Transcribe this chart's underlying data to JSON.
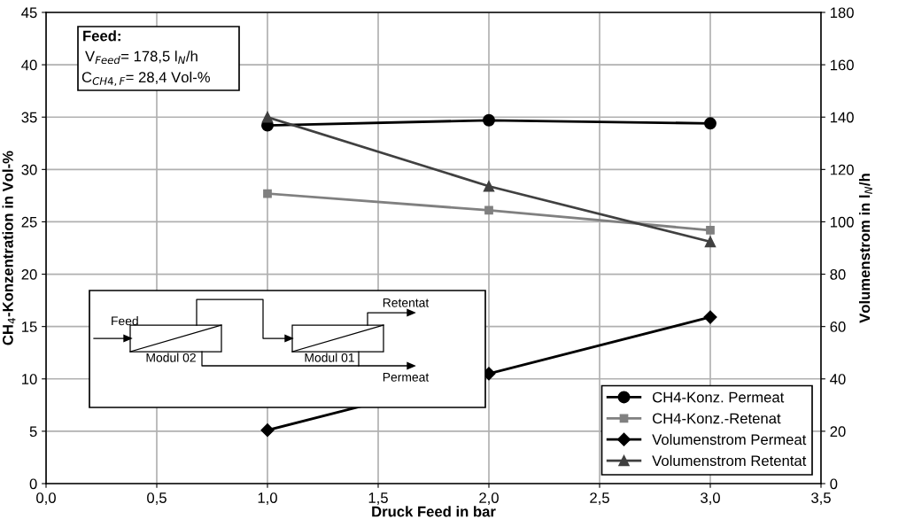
{
  "chart_data": {
    "type": "line",
    "xlabel": "Druck Feed in bar",
    "ylabel": "CH$_{4}$-Konzentration in Vol-%",
    "y2label": "Volumenstrom in l$_{N}$/h",
    "x": [
      1.0,
      2.0,
      3.0
    ],
    "series": [
      {
        "name": "CH4-Konz. Permeat",
        "color": "#000000",
        "marker": "circle",
        "values": [
          34.2,
          34.7,
          34.4
        ]
      },
      {
        "name": "CH4-Konz.-Retenat",
        "color": "#808080",
        "marker": "square",
        "values": [
          27.7,
          26.1,
          24.2
        ]
      },
      {
        "name": "Volumenstrom Permeat",
        "color": "#000000",
        "marker": "diamond",
        "axis": "y2",
        "values": [
          20.4,
          42.0,
          63.6
        ]
      },
      {
        "name": "Volumenstrom Retentat",
        "color": "#404040",
        "marker": "triangle",
        "axis": "y2",
        "values": [
          140.0,
          113.6,
          92.4
        ]
      }
    ],
    "xlim": [
      0,
      3.5
    ],
    "xticks": [
      {
        "value": 0,
        "label": "0,0"
      },
      {
        "value": 0.5,
        "label": "0,5"
      },
      {
        "value": 1.0,
        "label": "1,0"
      },
      {
        "value": 1.5,
        "label": "1,5"
      },
      {
        "value": 2.0,
        "label": "2,0"
      },
      {
        "value": 2.5,
        "label": "2,5"
      },
      {
        "value": 3.0,
        "label": "3,0"
      },
      {
        "value": 3.5,
        "label": "3,5"
      }
    ],
    "ylim": [
      0,
      45
    ],
    "yticks": [
      0,
      5,
      10,
      15,
      20,
      25,
      30,
      35,
      40,
      45
    ],
    "y2lim": [
      0,
      180
    ],
    "y2ticks": [
      0,
      20,
      40,
      60,
      80,
      100,
      120,
      140,
      160,
      180
    ],
    "grid": true,
    "legend": "bottom right",
    "annotations": [
      "Feed:",
      "V$_{Feed}$= 178,5 l$_{N}$/h",
      "C$_{CH4,F}$= 28,4 Vol-%",
      "Feed",
      "Modul 02",
      "Modul 01",
      "Retentat",
      "Permeat"
    ]
  }
}
